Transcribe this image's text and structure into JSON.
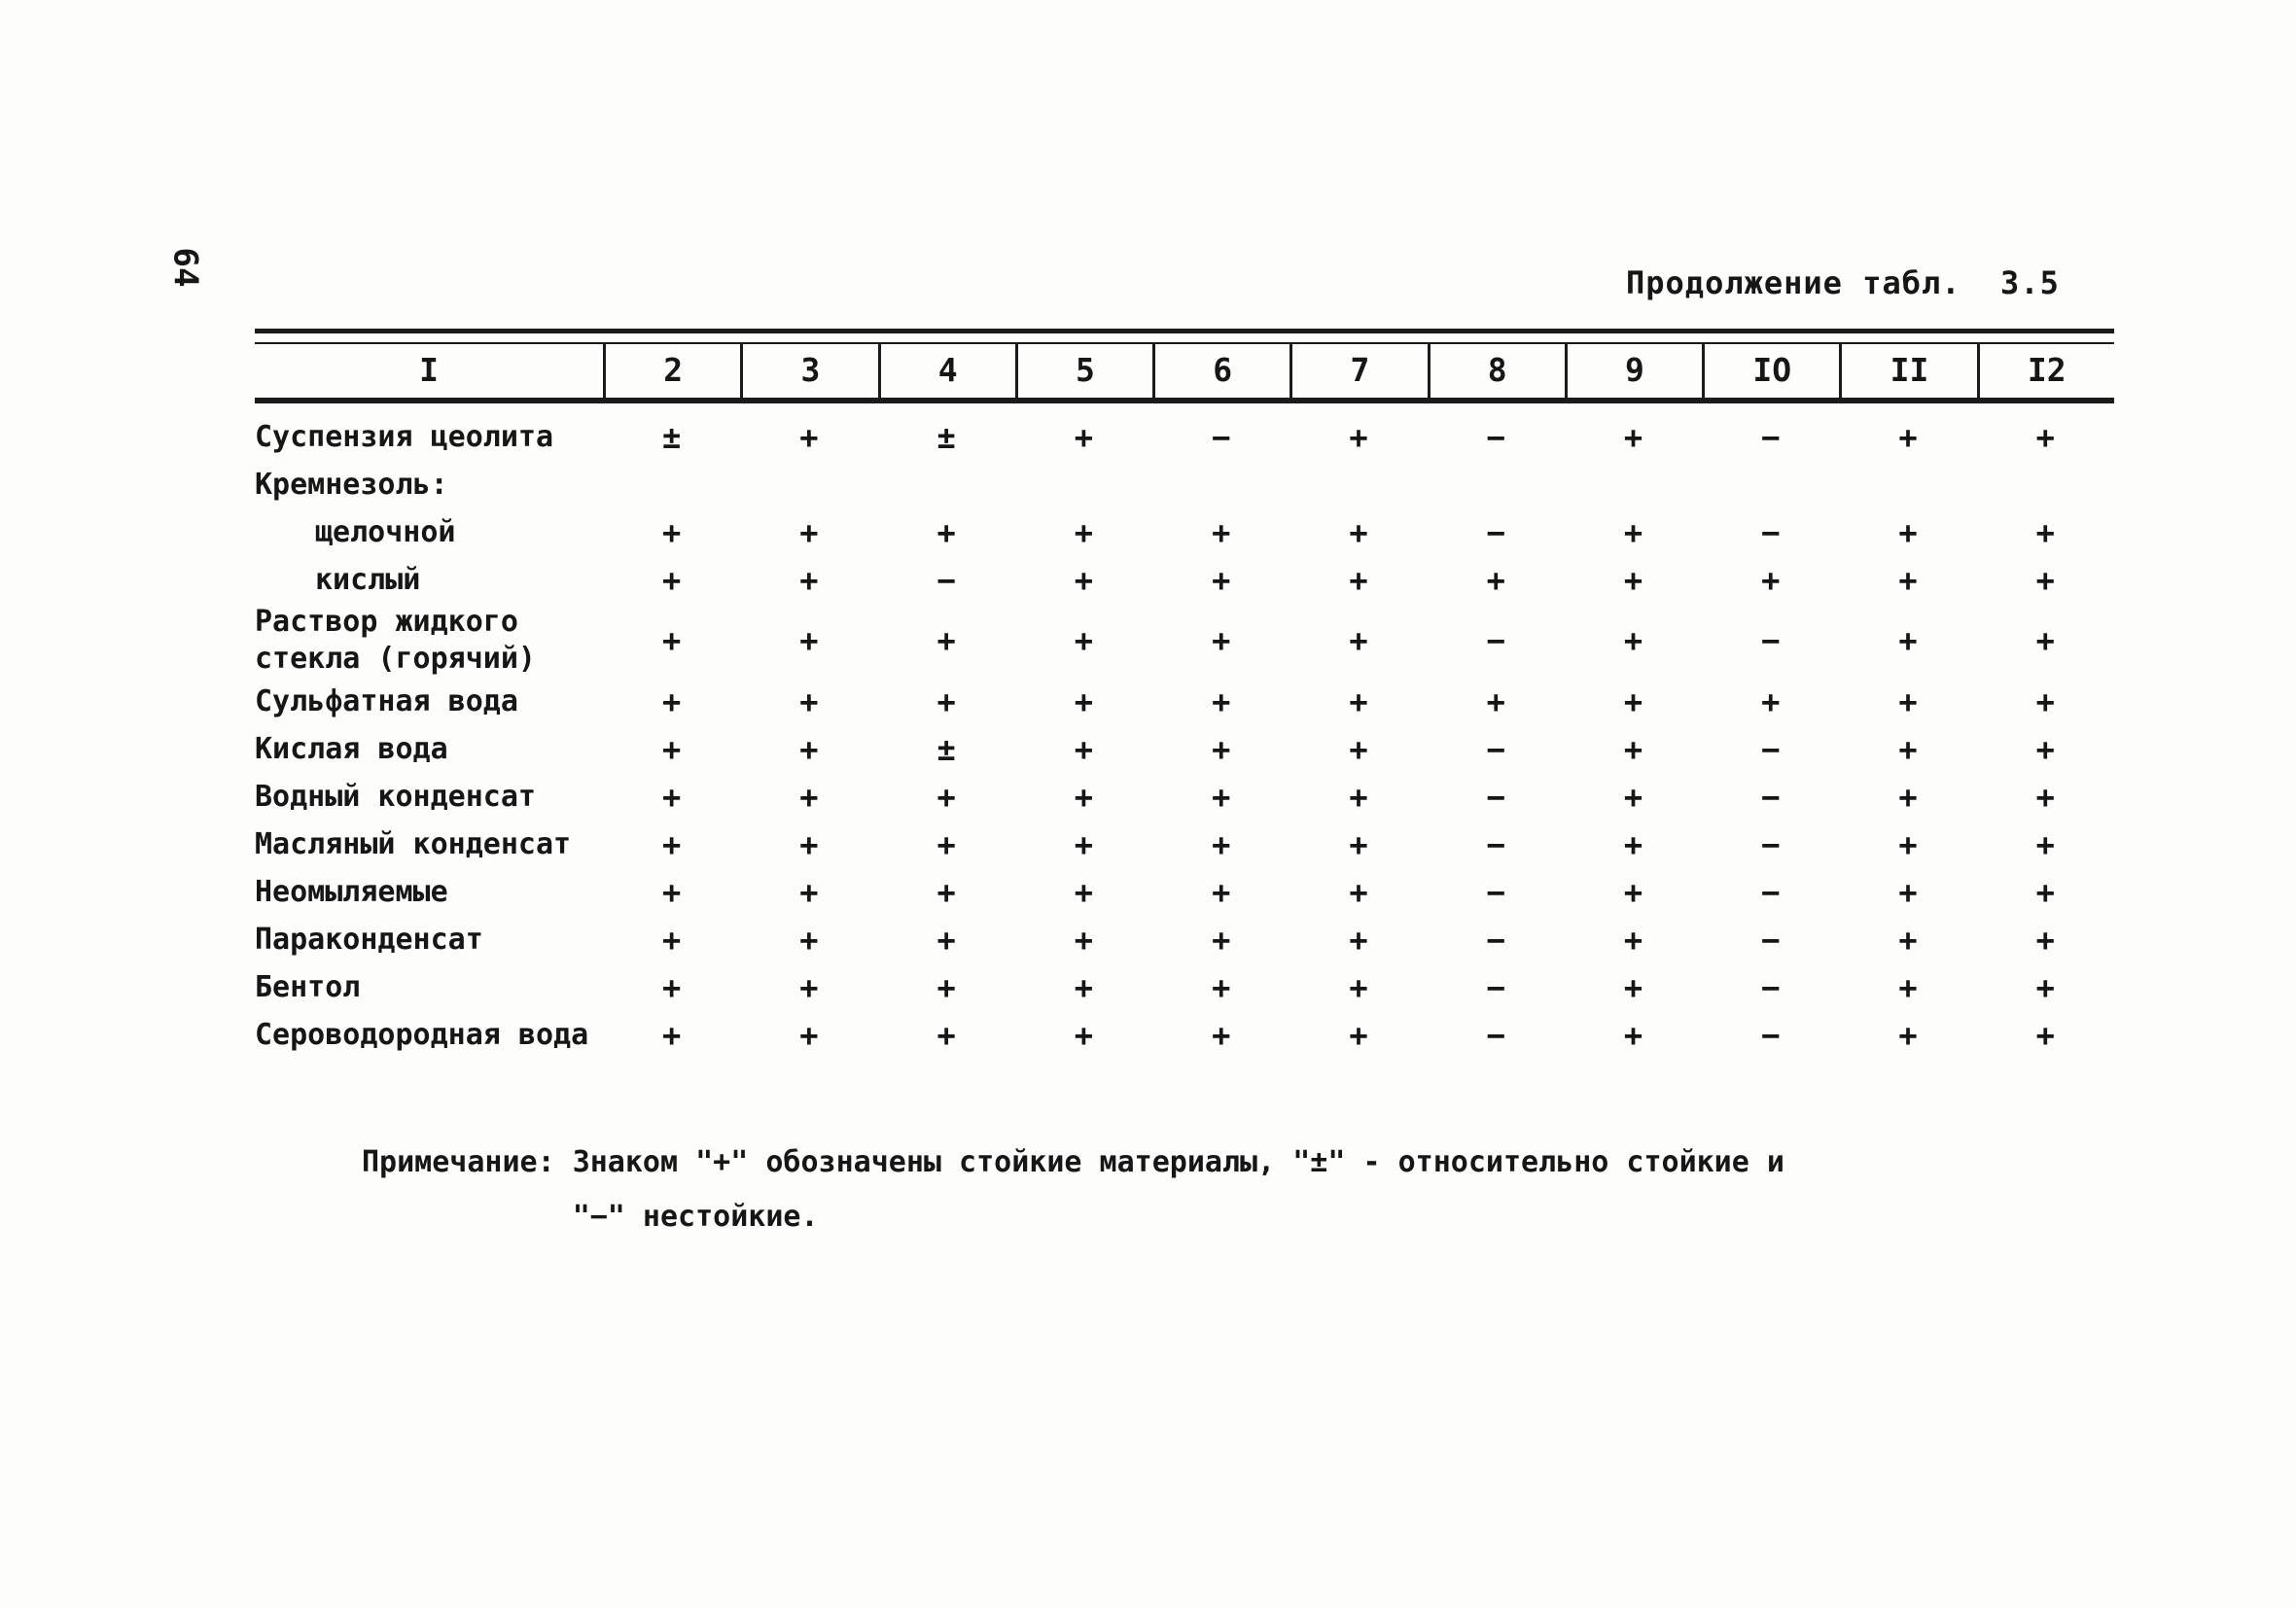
{
  "page": {
    "number": "64",
    "caption": "Продолжение табл.  3.5"
  },
  "table": {
    "headers": [
      "I",
      "2",
      "3",
      "4",
      "5",
      "6",
      "7",
      "8",
      "9",
      "IO",
      "II",
      "I2"
    ],
    "rows": [
      {
        "label": "Суспензия цеолита",
        "indent": 0,
        "values": [
          "±",
          "+",
          "±",
          "+",
          "−",
          "+",
          "−",
          "+",
          "−",
          "+",
          "+"
        ]
      },
      {
        "label": "Кремнезоль:",
        "indent": 0,
        "values": []
      },
      {
        "label": "щелочной",
        "indent": 1,
        "values": [
          "+",
          "+",
          "+",
          "+",
          "+",
          "+",
          "−",
          "+",
          "−",
          "+",
          "+"
        ]
      },
      {
        "label": "кислый",
        "indent": 1,
        "values": [
          "+",
          "+",
          "−",
          "+",
          "+",
          "+",
          "+",
          "+",
          "+",
          "+",
          "+"
        ]
      },
      {
        "label": "Раствор жидкого\nстекла (горячий)",
        "indent": 0,
        "values": [
          "+",
          "+",
          "+",
          "+",
          "+",
          "+",
          "−",
          "+",
          "−",
          "+",
          "+"
        ]
      },
      {
        "label": "Сульфатная вода",
        "indent": 0,
        "values": [
          "+",
          "+",
          "+",
          "+",
          "+",
          "+",
          "+",
          "+",
          "+",
          "+",
          "+"
        ]
      },
      {
        "label": "Кислая вода",
        "indent": 0,
        "values": [
          "+",
          "+",
          "±",
          "+",
          "+",
          "+",
          "−",
          "+",
          "−",
          "+",
          "+"
        ]
      },
      {
        "label": "Водный конденсат",
        "indent": 0,
        "values": [
          "+",
          "+",
          "+",
          "+",
          "+",
          "+",
          "−",
          "+",
          "−",
          "+",
          "+"
        ]
      },
      {
        "label": "Масляный конденсат",
        "indent": 0,
        "values": [
          "+",
          "+",
          "+",
          "+",
          "+",
          "+",
          "−",
          "+",
          "−",
          "+",
          "+"
        ]
      },
      {
        "label": "Неомыляемые",
        "indent": 0,
        "values": [
          "+",
          "+",
          "+",
          "+",
          "+",
          "+",
          "−",
          "+",
          "−",
          "+",
          "+"
        ]
      },
      {
        "label": "Параконденсат",
        "indent": 0,
        "values": [
          "+",
          "+",
          "+",
          "+",
          "+",
          "+",
          "−",
          "+",
          "−",
          "+",
          "+"
        ]
      },
      {
        "label": "Бентол",
        "indent": 0,
        "values": [
          "+",
          "+",
          "+",
          "+",
          "+",
          "+",
          "−",
          "+",
          "−",
          "+",
          "+"
        ]
      },
      {
        "label": "Сероводородная вода",
        "indent": 0,
        "values": [
          "+",
          "+",
          "+",
          "+",
          "+",
          "+",
          "−",
          "+",
          "−",
          "+",
          "+"
        ]
      }
    ]
  },
  "note": {
    "label": "Примечание:",
    "line1": "Знаком \"+\" обозначены стойкие материалы, \"±\" - относительно стойкие и",
    "line2": "\"−\" нестойкие."
  }
}
